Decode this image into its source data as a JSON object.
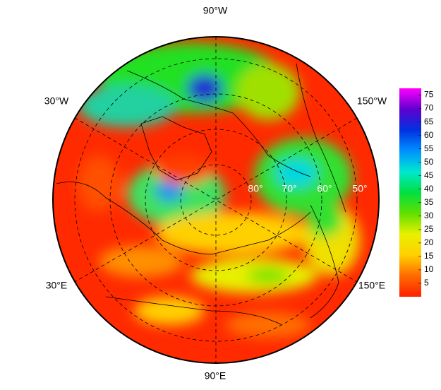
{
  "map": {
    "lon_labels": [
      "90°W",
      "30°W",
      "150°W",
      "30°E",
      "150°E",
      "90°E"
    ],
    "lat_labels": [
      "80°",
      "70°",
      "60°",
      "50°"
    ],
    "colorbar": {
      "lim": [
        0,
        77.5
      ],
      "ticks": [
        5,
        10,
        15,
        20,
        25,
        30,
        35,
        40,
        45,
        50,
        55,
        60,
        65,
        70,
        75
      ],
      "colors": [
        "#ff2000",
        "#ff6a00",
        "#ffd000",
        "#e8f000",
        "#60e000",
        "#00e040",
        "#00e8d0",
        "#0090ff",
        "#0030e0",
        "#6000d0",
        "#ff00ff"
      ]
    }
  }
}
